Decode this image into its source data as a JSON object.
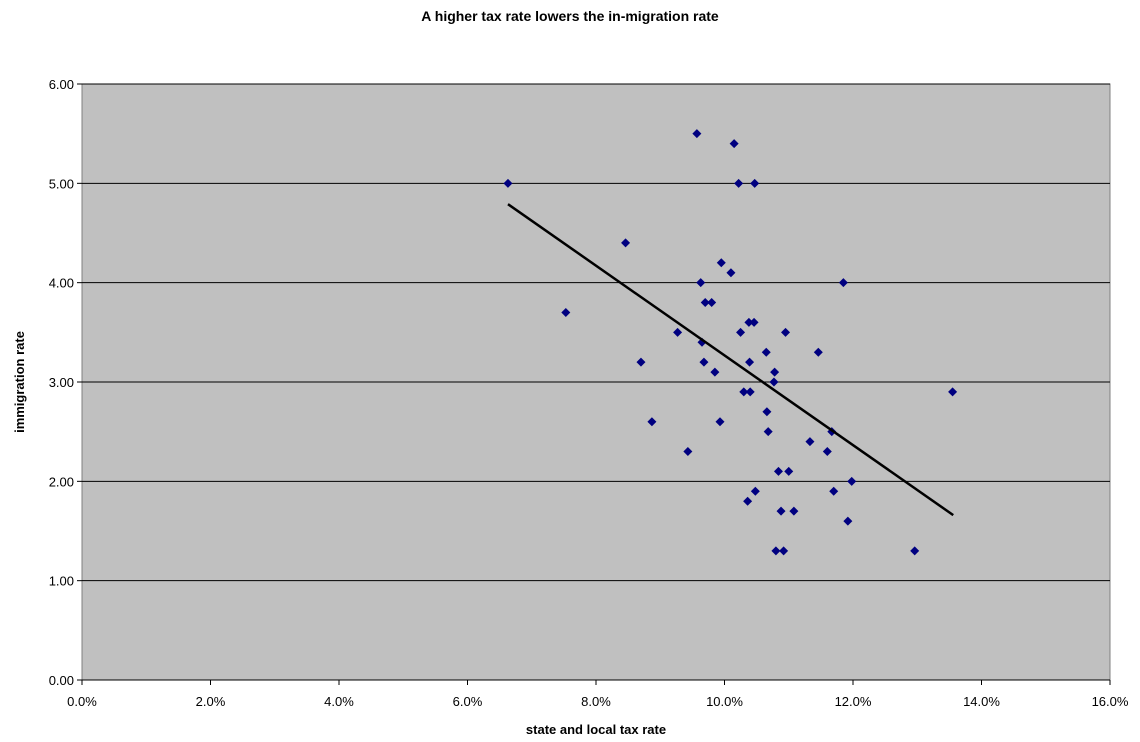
{
  "chart_data": {
    "type": "scatter",
    "title": "A higher tax rate lowers the in-migration rate",
    "xlabel": "state and local tax rate",
    "ylabel": "immigration rate",
    "xlim": [
      0,
      0.16
    ],
    "ylim": [
      0,
      6
    ],
    "x_ticks": [
      0,
      0.02,
      0.04,
      0.06,
      0.08,
      0.1,
      0.12,
      0.14,
      0.16
    ],
    "x_tick_labels": [
      "0.0%",
      "2.0%",
      "4.0%",
      "6.0%",
      "8.0%",
      "10.0%",
      "12.0%",
      "14.0%",
      "16.0%"
    ],
    "y_ticks": [
      0,
      1,
      2,
      3,
      4,
      5,
      6
    ],
    "y_tick_labels": [
      "0.00",
      "1.00",
      "2.00",
      "3.00",
      "4.00",
      "5.00",
      "6.00"
    ],
    "grid": "horizontal",
    "plot_background": "#c0c0c0",
    "marker_color": "#000080",
    "marker": "diamond",
    "trendline": {
      "x": [
        0.0663,
        0.1356
      ],
      "y": [
        4.79,
        1.66
      ],
      "color": "#000000"
    },
    "series": [
      {
        "points": [
          [
            0.0663,
            5.0
          ],
          [
            0.0753,
            3.7
          ],
          [
            0.0846,
            4.4
          ],
          [
            0.087,
            3.2
          ],
          [
            0.0887,
            2.6
          ],
          [
            0.0927,
            3.5
          ],
          [
            0.0943,
            2.3
          ],
          [
            0.0957,
            5.5
          ],
          [
            0.0963,
            4.0
          ],
          [
            0.0965,
            3.4
          ],
          [
            0.0968,
            3.2
          ],
          [
            0.097,
            3.8
          ],
          [
            0.098,
            3.8
          ],
          [
            0.0985,
            3.1
          ],
          [
            0.0993,
            2.6
          ],
          [
            0.0995,
            4.2
          ],
          [
            0.101,
            4.1
          ],
          [
            0.1015,
            5.4
          ],
          [
            0.1022,
            5.0
          ],
          [
            0.1025,
            3.5
          ],
          [
            0.103,
            2.9
          ],
          [
            0.1036,
            1.8
          ],
          [
            0.1038,
            3.6
          ],
          [
            0.1039,
            3.2
          ],
          [
            0.104,
            2.9
          ],
          [
            0.1046,
            3.6
          ],
          [
            0.1047,
            5.0
          ],
          [
            0.1048,
            1.9
          ],
          [
            0.1065,
            3.3
          ],
          [
            0.1066,
            2.7
          ],
          [
            0.1068,
            2.5
          ],
          [
            0.1077,
            3.0
          ],
          [
            0.1078,
            3.1
          ],
          [
            0.108,
            1.3
          ],
          [
            0.1084,
            2.1
          ],
          [
            0.1088,
            1.7
          ],
          [
            0.1092,
            1.3
          ],
          [
            0.1095,
            3.5
          ],
          [
            0.11,
            2.1
          ],
          [
            0.1108,
            1.7
          ],
          [
            0.1133,
            2.4
          ],
          [
            0.1146,
            3.3
          ],
          [
            0.116,
            2.3
          ],
          [
            0.1167,
            2.5
          ],
          [
            0.117,
            1.9
          ],
          [
            0.1185,
            4.0
          ],
          [
            0.1192,
            1.6
          ],
          [
            0.1198,
            2.0
          ],
          [
            0.1296,
            1.3
          ],
          [
            0.1355,
            2.9
          ]
        ]
      }
    ]
  }
}
